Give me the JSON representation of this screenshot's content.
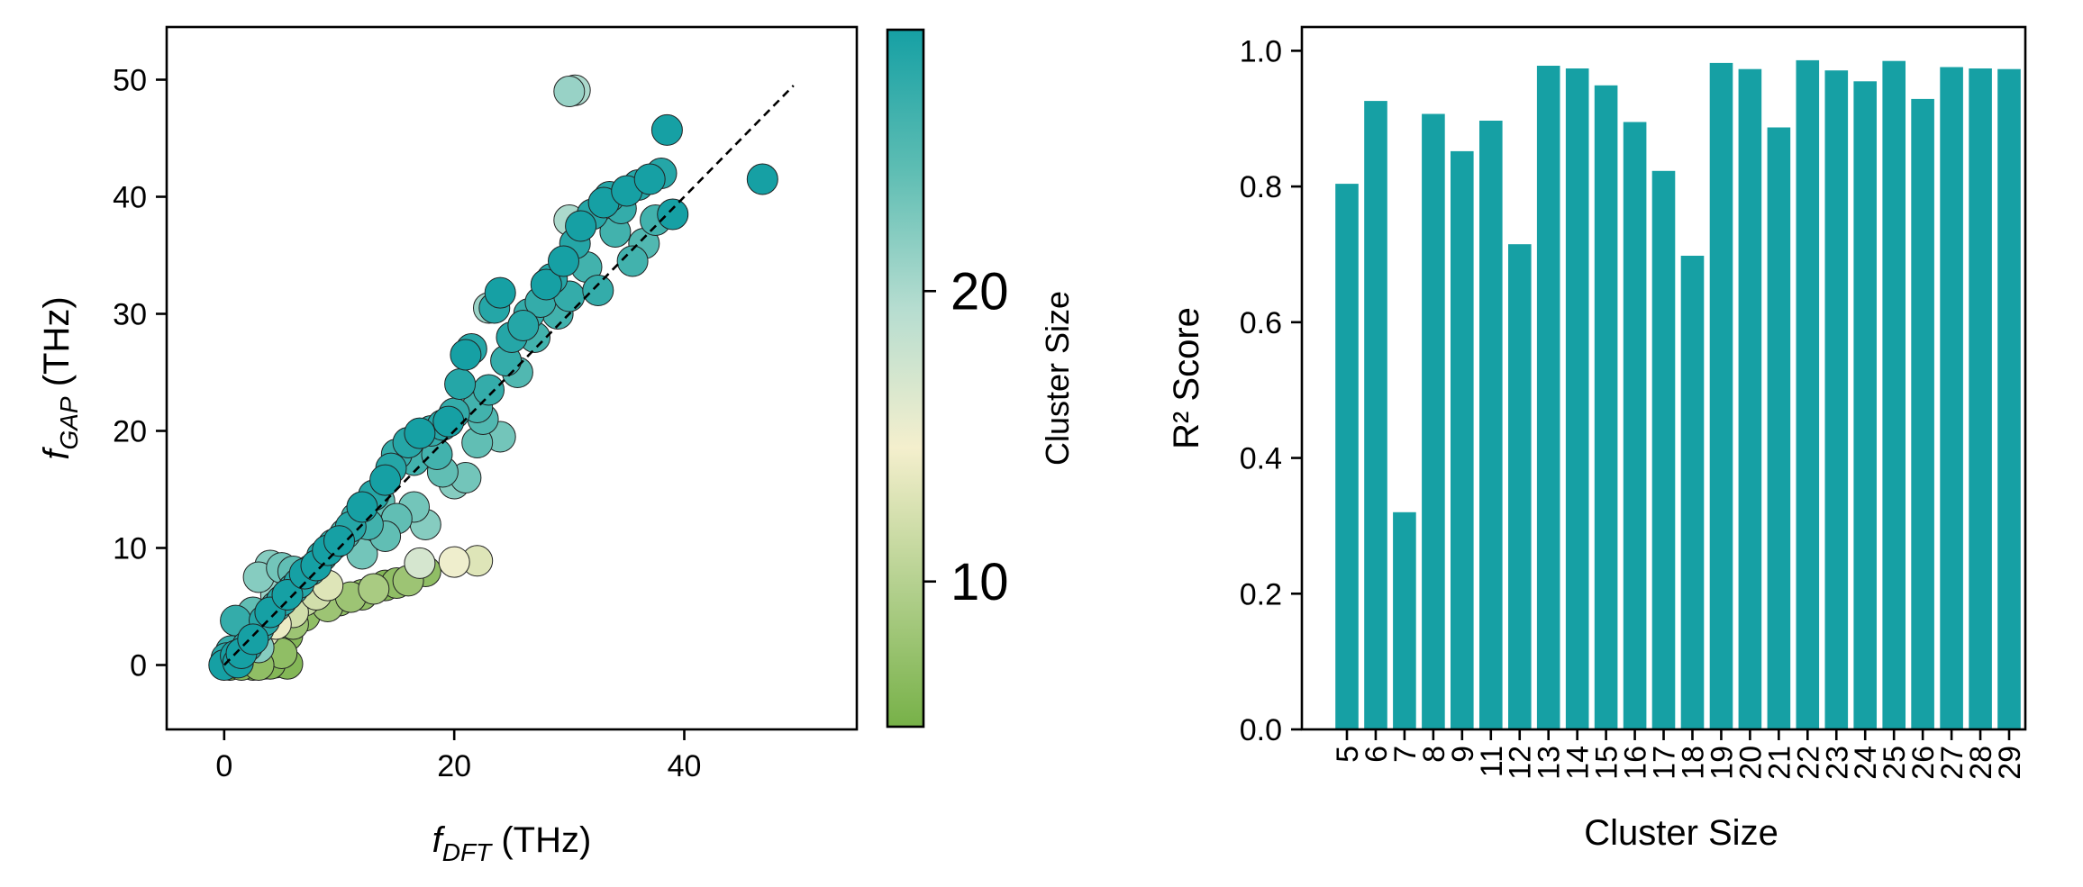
{
  "colors": {
    "bar": "#16a0a4",
    "colormap": [
      "#77b148",
      "#b3d08e",
      "#f4efcd",
      "#b6ddd0",
      "#5dbdb3",
      "#16a0a4"
    ]
  },
  "chart_data": [
    {
      "type": "scatter",
      "title": "",
      "xlabel": "f_DFT (THz)",
      "xlabel_main": "f",
      "xlabel_sub": "DFT",
      "xlabel_unit": " (THz)",
      "ylabel": "f_GAP (THz)",
      "ylabel_main": "f",
      "ylabel_sub": "GAP",
      "ylabel_unit": " (THz)",
      "xlim": [
        -5,
        55
      ],
      "ylim": [
        -5.5,
        54.5
      ],
      "xticks": [
        0,
        20,
        40
      ],
      "yticks": [
        0,
        10,
        20,
        30,
        40,
        50
      ],
      "diagonal": [
        [
          0,
          0
        ],
        [
          49.5,
          49.5
        ]
      ],
      "colorbar": {
        "label": "Cluster Size",
        "range": [
          5,
          29
        ],
        "ticks": [
          10,
          20
        ]
      },
      "points_format": [
        "f_DFT",
        "f_GAP",
        "cluster_size"
      ],
      "points": [
        [
          0,
          0,
          29
        ],
        [
          0.3,
          0.2,
          28
        ],
        [
          0.5,
          0.5,
          27
        ],
        [
          0.8,
          0.3,
          26
        ],
        [
          1,
          0.8,
          29
        ],
        [
          0.2,
          0.6,
          28
        ],
        [
          1.2,
          0.2,
          29
        ],
        [
          0.6,
          1.2,
          27
        ],
        [
          1.5,
          1.0,
          29
        ],
        [
          2,
          1.6,
          28
        ],
        [
          2.5,
          2.2,
          29
        ],
        [
          3,
          3.1,
          27
        ],
        [
          3.5,
          3.8,
          28
        ],
        [
          4,
          4.5,
          29
        ],
        [
          4.5,
          5.0,
          26
        ],
        [
          5,
          5.5,
          28
        ],
        [
          5.5,
          6.0,
          29
        ],
        [
          6,
          6.5,
          27
        ],
        [
          6.5,
          7.0,
          28
        ],
        [
          7,
          7.8,
          29
        ],
        [
          7.5,
          8.1,
          27
        ],
        [
          8,
          8.5,
          29
        ],
        [
          8.5,
          9.3,
          28
        ],
        [
          9,
          9.8,
          29
        ],
        [
          9.5,
          10.3,
          27
        ],
        [
          10,
          10.6,
          29
        ],
        [
          10.5,
          11.2,
          25
        ],
        [
          11,
          11.8,
          28
        ],
        [
          11.5,
          12.6,
          26
        ],
        [
          12,
          13.5,
          29
        ],
        [
          12.5,
          12.0,
          26
        ],
        [
          13,
          14.5,
          28
        ],
        [
          13.5,
          14.0,
          24
        ],
        [
          14,
          15.8,
          29
        ],
        [
          14.5,
          16.8,
          28
        ],
        [
          15,
          18.0,
          27
        ],
        [
          16,
          19.0,
          28
        ],
        [
          16.5,
          17.5,
          26
        ],
        [
          17,
          19.8,
          29
        ],
        [
          17.5,
          18.5,
          25
        ],
        [
          18,
          20.0,
          27
        ],
        [
          18.5,
          18.0,
          26
        ],
        [
          19,
          20.5,
          28
        ],
        [
          19.5,
          20.8,
          29
        ],
        [
          20,
          21.5,
          27
        ],
        [
          20.5,
          24.0,
          28
        ],
        [
          21,
          26.5,
          29
        ],
        [
          21.5,
          27.0,
          28
        ],
        [
          22,
          22.0,
          26
        ],
        [
          22.5,
          21.0,
          25
        ],
        [
          23,
          23.5,
          27
        ],
        [
          23.5,
          30.5,
          28
        ],
        [
          24,
          31.8,
          29
        ],
        [
          24.5,
          26.0,
          27
        ],
        [
          25,
          28.0,
          28
        ],
        [
          25.5,
          25.0,
          25
        ],
        [
          26,
          29.0,
          28
        ],
        [
          26.5,
          30.0,
          27
        ],
        [
          27,
          28.0,
          26
        ],
        [
          27.5,
          31.0,
          27
        ],
        [
          28,
          32.5,
          29
        ],
        [
          28.5,
          33.0,
          28
        ],
        [
          29,
          30.0,
          26
        ],
        [
          29.5,
          34.5,
          29
        ],
        [
          30,
          31.5,
          27
        ],
        [
          30.5,
          36.0,
          28
        ],
        [
          31,
          37.5,
          29
        ],
        [
          31.5,
          34.0,
          26
        ],
        [
          32,
          38.5,
          28
        ],
        [
          32.5,
          32.0,
          27
        ],
        [
          33,
          39.5,
          29
        ],
        [
          33.5,
          40.0,
          28
        ],
        [
          34,
          37.0,
          26
        ],
        [
          34.5,
          39.0,
          27
        ],
        [
          35,
          40.5,
          29
        ],
        [
          35.5,
          34.5,
          26
        ],
        [
          36,
          41.0,
          28
        ],
        [
          36.5,
          36.0,
          25
        ],
        [
          37,
          41.5,
          29
        ],
        [
          37.5,
          38.0,
          26
        ],
        [
          38,
          42.0,
          28
        ],
        [
          38.5,
          45.7,
          29
        ],
        [
          39,
          38.5,
          29
        ],
        [
          46.8,
          41.5,
          29
        ],
        [
          15,
          12.5,
          24
        ],
        [
          16.5,
          13.5,
          23
        ],
        [
          17.5,
          12.0,
          22
        ],
        [
          19,
          16.5,
          24
        ],
        [
          20,
          15.5,
          22
        ],
        [
          21,
          16.0,
          23
        ],
        [
          22,
          19.0,
          24
        ],
        [
          24,
          19.5,
          23
        ],
        [
          14,
          11.0,
          24
        ],
        [
          12,
          9.5,
          23
        ],
        [
          23,
          30.5,
          21
        ],
        [
          30,
          38.0,
          20
        ],
        [
          30,
          49.0,
          21
        ],
        [
          30.5,
          49.1,
          20
        ],
        [
          4,
          8.5,
          22
        ],
        [
          5,
          8.3,
          23
        ],
        [
          6,
          8.0,
          24
        ],
        [
          3,
          7.5,
          22
        ],
        [
          4.5,
          6.0,
          21
        ],
        [
          2,
          3.0,
          23
        ],
        [
          3,
          1.5,
          22
        ],
        [
          2.5,
          4.5,
          24
        ],
        [
          1,
          3.8,
          27
        ],
        [
          0.5,
          0.5,
          16
        ],
        [
          1.5,
          1.5,
          15
        ],
        [
          2.5,
          2.0,
          14
        ],
        [
          3.5,
          2.8,
          13
        ],
        [
          4.5,
          3.5,
          14
        ],
        [
          6,
          4.5,
          12
        ],
        [
          7,
          5.5,
          11
        ],
        [
          8,
          6.0,
          12
        ],
        [
          9,
          6.8,
          13
        ],
        [
          20,
          8.8,
          15
        ],
        [
          22,
          8.9,
          13
        ],
        [
          17,
          8.7,
          17
        ],
        [
          13,
          6.5,
          9
        ],
        [
          9,
          5.0,
          8
        ],
        [
          10,
          5.5,
          7
        ],
        [
          11,
          5.8,
          8
        ],
        [
          12,
          6.0,
          7
        ],
        [
          14,
          6.8,
          6
        ],
        [
          15,
          7.0,
          7
        ],
        [
          16,
          7.2,
          8
        ],
        [
          17.5,
          8.0,
          7
        ],
        [
          7,
          4.2,
          7
        ],
        [
          6,
          3.5,
          8
        ],
        [
          5.5,
          2.5,
          6
        ],
        [
          5,
          1.0,
          7
        ],
        [
          4.5,
          0.2,
          5
        ],
        [
          5.5,
          0.1,
          6
        ],
        [
          3.5,
          0.1,
          6
        ],
        [
          2.5,
          0.0,
          5
        ],
        [
          1.5,
          0.0,
          6
        ],
        [
          0.5,
          0.0,
          5
        ],
        [
          3,
          0.0,
          7
        ],
        [
          4,
          0.1,
          6
        ]
      ]
    },
    {
      "type": "bar",
      "title": "",
      "xlabel": "Cluster Size",
      "ylabel": "R² Score",
      "ylim": [
        0,
        1.035
      ],
      "yticks": [
        "0.0",
        "0.2",
        "0.4",
        "0.6",
        "0.8",
        "1.0"
      ],
      "categories": [
        "5",
        "6",
        "7",
        "8",
        "9",
        "11",
        "12",
        "13",
        "14",
        "15",
        "16",
        "17",
        "18",
        "19",
        "20",
        "21",
        "22",
        "23",
        "24",
        "25",
        "26",
        "27",
        "28",
        "29"
      ],
      "values": [
        0.804,
        0.926,
        0.32,
        0.907,
        0.852,
        0.897,
        0.715,
        0.978,
        0.974,
        0.949,
        0.895,
        0.823,
        0.698,
        0.982,
        0.973,
        0.887,
        0.986,
        0.971,
        0.955,
        0.985,
        0.929,
        0.976,
        0.974,
        0.973
      ]
    }
  ]
}
